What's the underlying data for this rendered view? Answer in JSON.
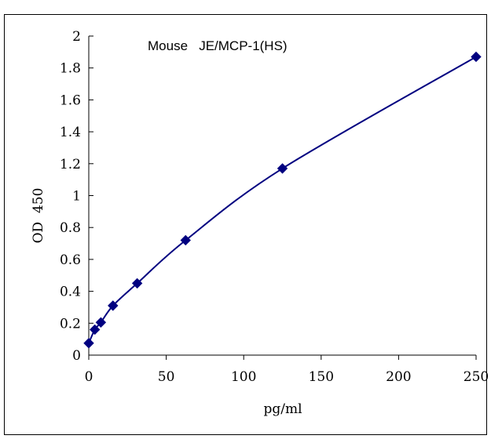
{
  "chart_data": {
    "type": "line",
    "title": "Mouse   JE/MCP-1(HS)",
    "xlabel": "pg/ml",
    "ylabel": "OD  450",
    "xlim": [
      0,
      250
    ],
    "ylim": [
      0,
      2
    ],
    "x_ticks": [
      "0",
      "50",
      "100",
      "150",
      "200",
      "250"
    ],
    "y_ticks": [
      "0",
      "0.2",
      "0.4",
      "0.6",
      "0.8",
      "1",
      "1.2",
      "1.4",
      "1.6",
      "1.8",
      "2"
    ],
    "grid": false,
    "series": [
      {
        "x": [
          0,
          3.9,
          7.8,
          15.6,
          31.25,
          62.5,
          125,
          250
        ],
        "y": [
          0.075,
          0.16,
          0.205,
          0.31,
          0.45,
          0.72,
          1.17,
          1.87
        ],
        "marker": "diamond",
        "smooth": true
      }
    ],
    "colors": {
      "series": "#000080",
      "axis": "#000000",
      "border": "#000000"
    }
  }
}
